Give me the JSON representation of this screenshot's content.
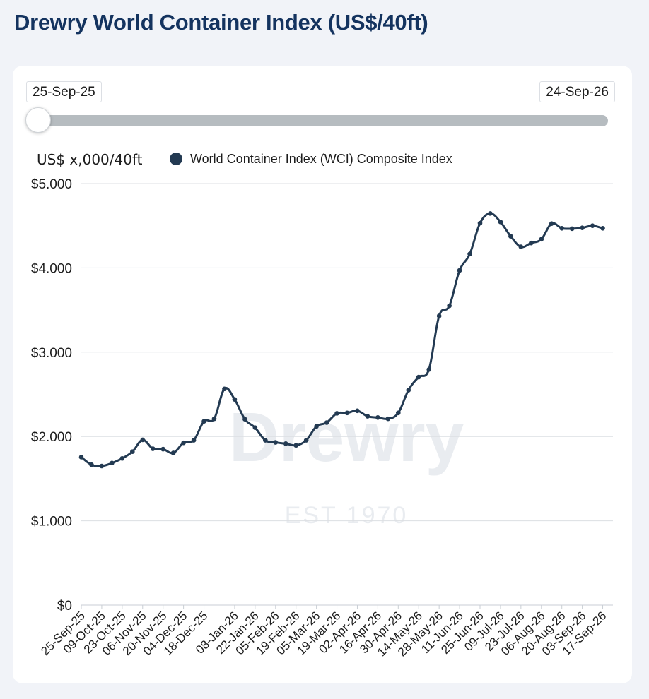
{
  "page": {
    "title": "Drewry World Container Index (US$/40ft)"
  },
  "range": {
    "start": "25-Sep-25",
    "end": "24-Sep-26",
    "slider_position": 0
  },
  "watermark": {
    "brand": "Drewry",
    "est": "EST 1970"
  },
  "colors": {
    "line": "#233a52",
    "title": "#14335f",
    "grid": "#dcdfe3"
  },
  "chart_data": {
    "type": "line",
    "title": "",
    "ylabel": "US$ x,000/40ft",
    "xlabel": "",
    "legend": {
      "position": "top-left",
      "entries": [
        "World Container Index (WCI) Composite Index"
      ]
    },
    "ylim": [
      0,
      5000
    ],
    "yticks": [
      {
        "value": 0,
        "label": "$0"
      },
      {
        "value": 1000,
        "label": "$1.000"
      },
      {
        "value": 2000,
        "label": "$2.000"
      },
      {
        "value": 3000,
        "label": "$3.000"
      },
      {
        "value": 4000,
        "label": "$4.000"
      },
      {
        "value": 5000,
        "label": "$5.000"
      }
    ],
    "x": [
      "25-Sep-25",
      "02-Oct-25",
      "09-Oct-25",
      "16-Oct-25",
      "23-Oct-25",
      "30-Oct-25",
      "06-Nov-25",
      "13-Nov-25",
      "20-Nov-25",
      "27-Nov-25",
      "04-Dec-25",
      "11-Dec-25",
      "18-Dec-25",
      "25-Dec-25",
      "01-Jan-26",
      "08-Jan-26",
      "15-Jan-26",
      "22-Jan-26",
      "29-Jan-26",
      "05-Feb-26",
      "12-Feb-26",
      "19-Feb-26",
      "26-Feb-26",
      "05-Mar-26",
      "12-Mar-26",
      "19-Mar-26",
      "26-Mar-26",
      "02-Apr-26",
      "09-Apr-26",
      "16-Apr-26",
      "23-Apr-26",
      "30-Apr-26",
      "07-May-26",
      "14-May-26",
      "21-May-26",
      "28-May-26",
      "04-Jun-26",
      "11-Jun-26",
      "18-Jun-26",
      "25-Jun-26",
      "02-Jul-26",
      "09-Jul-26",
      "16-Jul-26",
      "23-Jul-26",
      "30-Jul-26",
      "06-Aug-26",
      "13-Aug-26",
      "20-Aug-26",
      "27-Aug-26",
      "03-Sep-26",
      "10-Sep-26",
      "17-Sep-26",
      "24-Sep-26"
    ],
    "xtick_labels": [
      "25-Sep-25",
      "09-Oct-25",
      "23-Oct-25",
      "06-Nov-25",
      "20-Nov-25",
      "04-Dec-25",
      "18-Dec-25",
      "08-Jan-26",
      "22-Jan-26",
      "05-Feb-26",
      "19-Feb-26",
      "05-Mar-26",
      "19-Mar-26",
      "02-Apr-26",
      "16-Apr-26",
      "30-Apr-26",
      "14-May-26",
      "28-May-26",
      "11-Jun-26",
      "25-Jun-26",
      "09-Jul-26",
      "23-Jul-26",
      "06-Aug-26",
      "20-Aug-26",
      "03-Sep-26",
      "17-Sep-26"
    ],
    "series": [
      {
        "name": "World Container Index (WCI) Composite Index",
        "values": [
          1755,
          1665,
          1650,
          1685,
          1740,
          1820,
          1960,
          1855,
          1850,
          1805,
          1925,
          1955,
          2180,
          2210,
          2565,
          2440,
          2205,
          2105,
          1955,
          1930,
          1915,
          1895,
          1955,
          2120,
          2165,
          2275,
          2280,
          2305,
          2240,
          2225,
          2210,
          2280,
          2550,
          2705,
          2795,
          3430,
          3550,
          3970,
          4165,
          4530,
          4645,
          4545,
          4375,
          4250,
          4295,
          4340,
          4525,
          4470,
          4465,
          4475,
          4500,
          4470,
          null
        ]
      }
    ]
  }
}
